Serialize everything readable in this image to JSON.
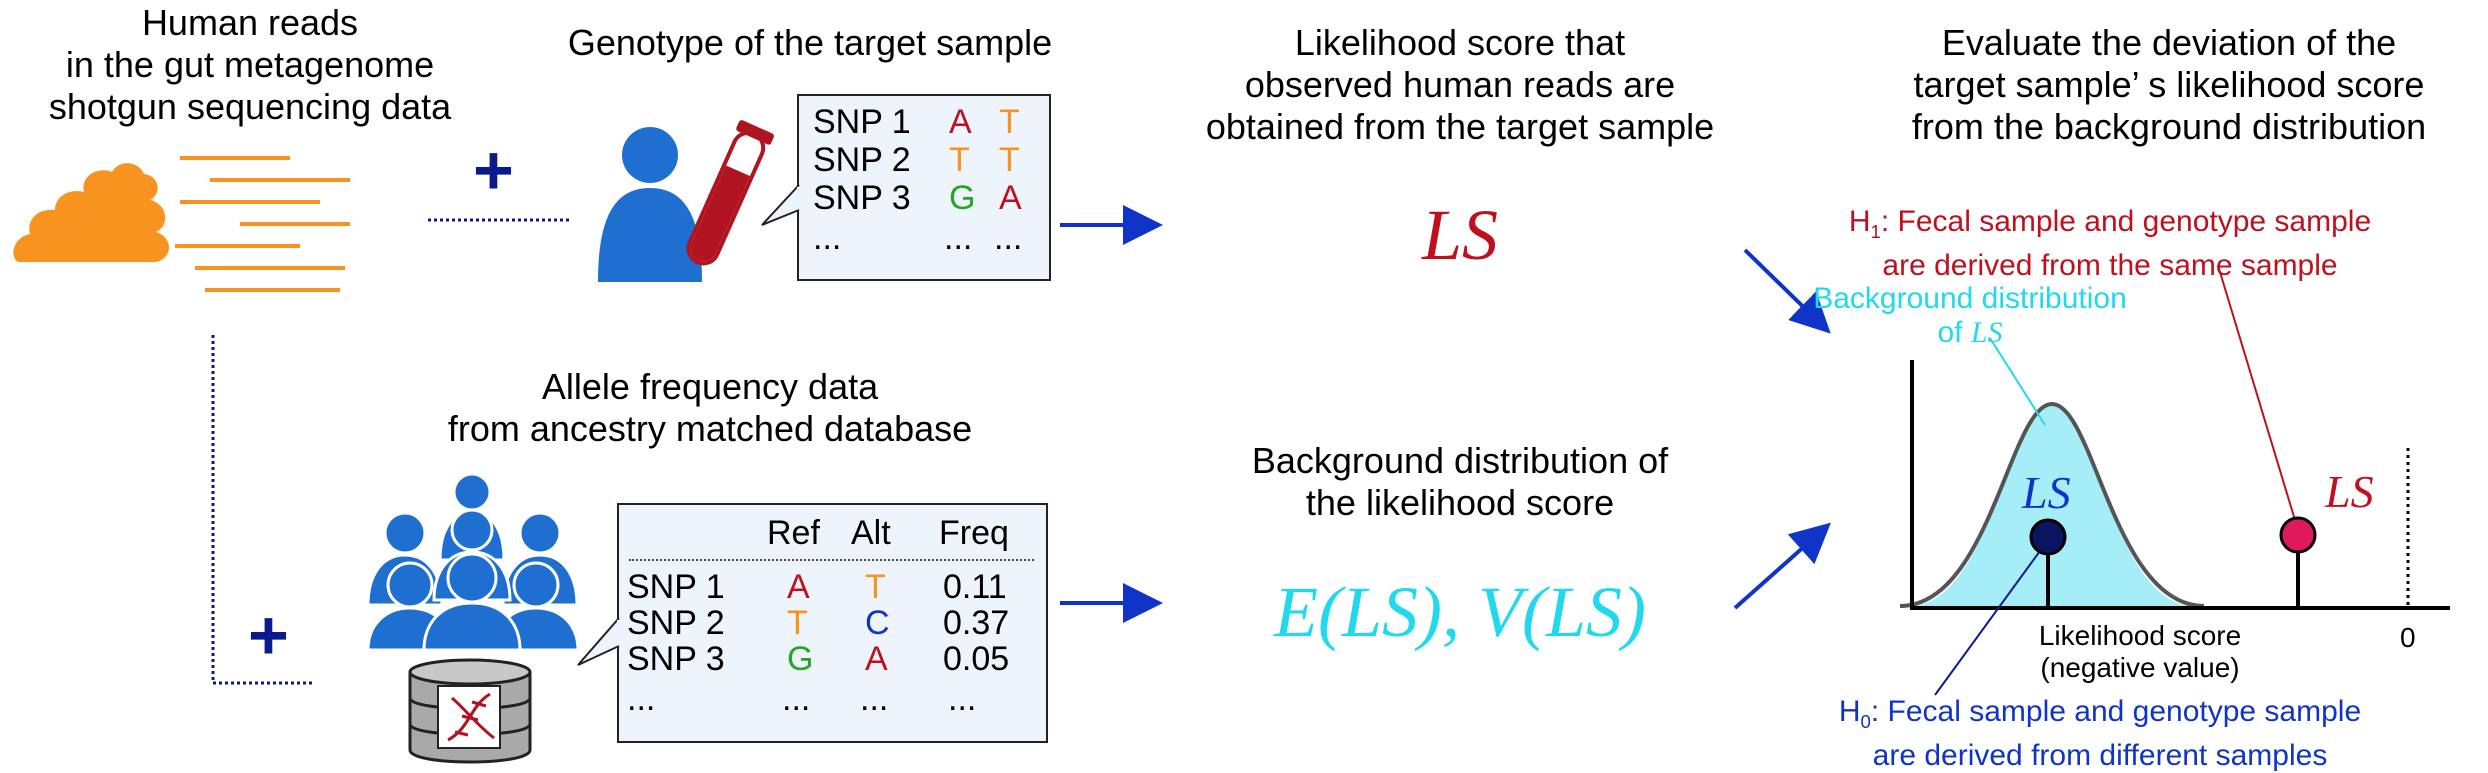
{
  "colors": {
    "orange": "#f7931e",
    "blue_person": "#1f6fd1",
    "navy": "#0a1a8c",
    "arrow_blue": "#1034c8",
    "red": "#c0101e",
    "green": "#22a81e",
    "cyan": "#22d8ee",
    "cyan_fill": "#a6eef7",
    "magenta": "#e0195c",
    "dark_navy": "#0a1460"
  },
  "human_reads": {
    "line1": "Human reads",
    "line2": "in the gut metagenome",
    "line3": "shotgun sequencing data",
    "icon": "stool-icon",
    "reads_icon": "sequencing-reads-icon"
  },
  "plus_symbol": "+",
  "genotype": {
    "title": "Genotype of the target sample",
    "person_icon": "person-icon",
    "tube_icon": "blood-tube-icon",
    "rows": [
      {
        "snp": "SNP 1",
        "a1": "A",
        "a2": "T"
      },
      {
        "snp": "SNP 2",
        "a1": "T",
        "a2": "T"
      },
      {
        "snp": "SNP 3",
        "a1": "G",
        "a2": "A"
      },
      {
        "snp": "...",
        "a1": "...",
        "a2": "..."
      }
    ]
  },
  "allele_freq": {
    "line1": "Allele frequency data",
    "line2": "from ancestry matched database",
    "group_icon": "population-icon",
    "db_icon": "dna-database-icon",
    "headers": {
      "ref": "Ref",
      "alt": "Alt",
      "freq": "Freq"
    },
    "rows": [
      {
        "snp": "SNP 1",
        "ref": "A",
        "alt": "T",
        "freq": "0.11"
      },
      {
        "snp": "SNP 2",
        "ref": "T",
        "alt": "C",
        "freq": "0.37"
      },
      {
        "snp": "SNP 3",
        "ref": "G",
        "alt": "A",
        "freq": "0.05"
      },
      {
        "snp": "...",
        "ref": "...",
        "alt": "...",
        "freq": "..."
      }
    ]
  },
  "likelihood": {
    "line1": "Likelihood score that",
    "line2": "observed human reads are",
    "line3": "obtained from the target sample",
    "symbol": "LS"
  },
  "background": {
    "line1": "Background distribution of",
    "line2": "the likelihood score",
    "formula": "E(LS), V(LS)"
  },
  "evaluate": {
    "line1": "Evaluate the deviation of the",
    "line2": "target sample’ s likelihood score",
    "line3": "from the background distribution"
  },
  "plot": {
    "h1_prefix": "H",
    "h1_sub": "1",
    "h1_line1": ": Fecal sample and genotype sample",
    "h1_line2": "are derived from the same sample",
    "bg_line1": "Background distribution",
    "bg_line2_prefix": "of ",
    "bg_line2_symbol": "LS",
    "ls_mean_label": "LS",
    "ls_target_label": "LS",
    "xlabel_line1": "Likelihood score",
    "xlabel_line2": "(negative value)",
    "zero_tick": "0",
    "h0_prefix": "H",
    "h0_sub": "0",
    "h0_line1": ": Fecal sample and genotype sample",
    "h0_line2": "are derived from different samples"
  }
}
